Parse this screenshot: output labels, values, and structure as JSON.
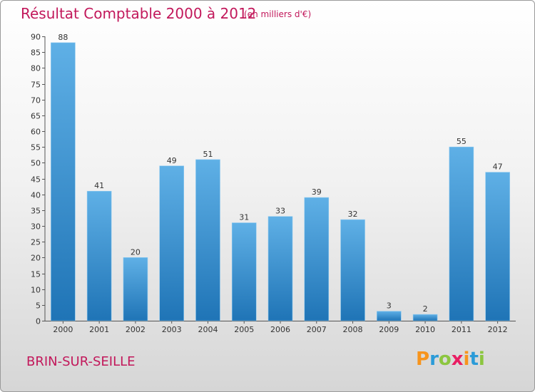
{
  "title": "Résultat Comptable 2000 à 2012",
  "subtitle": "(en milliers d'€)",
  "town": "BRIN-SUR-SEILLE",
  "logo": {
    "letters": [
      "P",
      "r",
      "o",
      "x",
      "i",
      "t",
      "i"
    ],
    "colors": [
      "#f7941d",
      "#2b9bd8",
      "#8cc63f",
      "#e91e63",
      "#f7941d",
      "#2b9bd8",
      "#8cc63f"
    ]
  },
  "colors": {
    "bar_light": "#5dade2",
    "bar_dark": "#2178b9",
    "title": "#c2185b"
  },
  "chart_data": {
    "type": "bar",
    "categories": [
      "2000",
      "2001",
      "2002",
      "2003",
      "2004",
      "2005",
      "2006",
      "2007",
      "2008",
      "2009",
      "2010",
      "2011",
      "2012"
    ],
    "values": [
      88,
      41,
      20,
      49,
      51,
      31,
      33,
      39,
      32,
      3,
      2,
      55,
      47
    ],
    "ylim": [
      0,
      90
    ],
    "yticks": [
      0,
      5,
      10,
      15,
      20,
      25,
      30,
      35,
      40,
      45,
      50,
      55,
      60,
      65,
      70,
      75,
      80,
      85,
      90
    ],
    "grid": false,
    "xlabel": "",
    "ylabel": ""
  }
}
